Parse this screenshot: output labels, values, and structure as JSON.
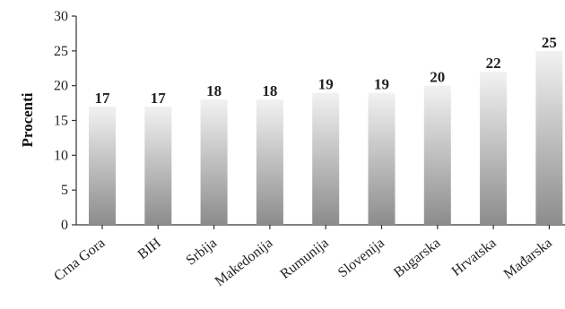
{
  "chart_data": {
    "type": "bar",
    "title": "",
    "xlabel": "",
    "ylabel": "Procenti",
    "ylim": [
      0,
      30
    ],
    "yticks": [
      0,
      5,
      10,
      15,
      20,
      25,
      30
    ],
    "grid": false,
    "legend": "none",
    "categories": [
      "Crna Gora",
      "BIH",
      "Srbija",
      "Makedonija",
      "Rumunija",
      "Slovenija",
      "Bugarska",
      "Hrvatska",
      "Mađarska"
    ],
    "values": [
      17,
      17,
      18,
      18,
      19,
      19,
      20,
      22,
      25
    ],
    "bar_gradient": [
      "#f2f2f2",
      "#8c8c8c"
    ]
  }
}
